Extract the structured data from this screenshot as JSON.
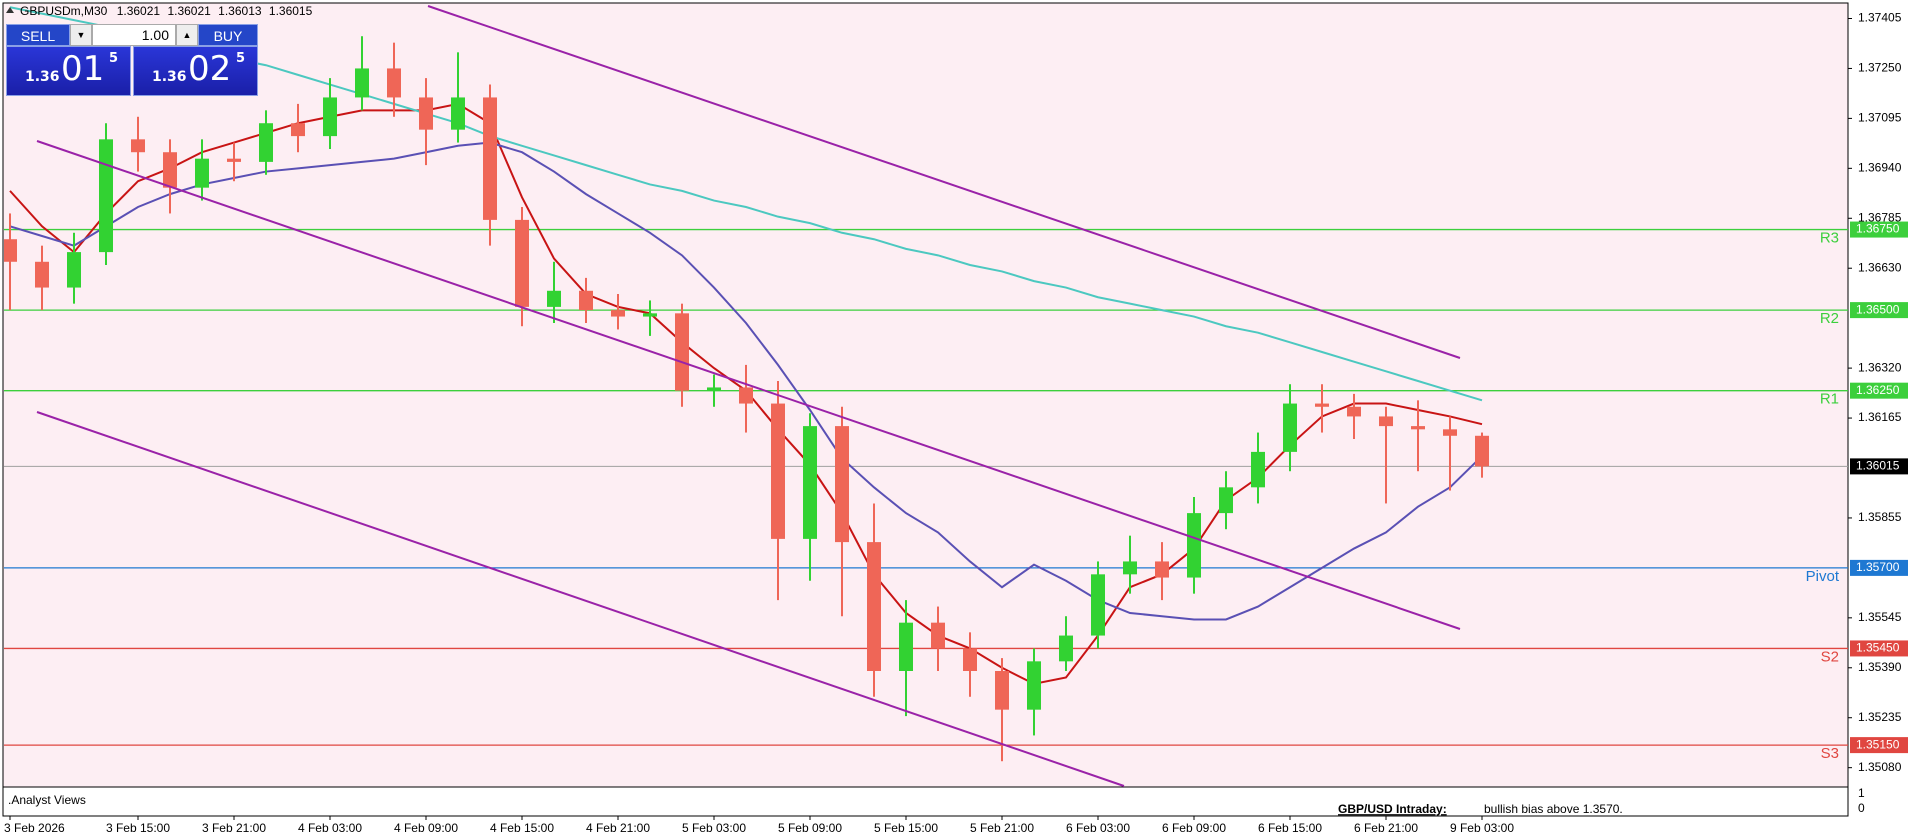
{
  "header": {
    "symbol": "GBPUSDm,M30",
    "ohlc": [
      1.36021,
      1.36021,
      1.36013,
      1.36015
    ]
  },
  "trade_panel": {
    "sell": "SELL",
    "buy": "BUY",
    "lot": "1.00",
    "bid": {
      "big": "1.36",
      "pips": "01",
      "point": "5"
    },
    "ask": {
      "big": "1.36",
      "pips": "02",
      "point": "5"
    }
  },
  "chart_data": {
    "type": "candlestick",
    "categories": [
      "3 Feb 2026",
      null,
      null,
      null,
      "3 Feb 15:00",
      null,
      null,
      "3 Feb 21:00",
      null,
      null,
      "4 Feb 03:00",
      null,
      null,
      "4 Feb 09:00",
      null,
      null,
      "4 Feb 15:00",
      null,
      null,
      "4 Feb 21:00",
      null,
      null,
      "5 Feb 03:00",
      null,
      null,
      "5 Feb 09:00",
      null,
      null,
      "5 Feb 15:00",
      null,
      null,
      "5 Feb 21:00",
      null,
      null,
      "6 Feb 03:00",
      null,
      null,
      "6 Feb 09:00",
      null,
      null,
      "6 Feb 15:00",
      null,
      null,
      "6 Feb 21:00",
      null,
      null,
      "9 Feb 03:00"
    ],
    "open": [
      1.3672,
      1.3665,
      1.3657,
      1.3668,
      1.3703,
      1.3699,
      1.3688,
      1.3697,
      1.3696,
      1.3708,
      1.3704,
      1.3716,
      1.3725,
      1.3716,
      1.3706,
      1.3716,
      1.3678,
      1.3651,
      1.3656,
      1.365,
      1.3648,
      1.3649,
      1.3625,
      1.3626,
      1.3621,
      1.3579,
      1.3614,
      1.3578,
      1.3538,
      1.3553,
      1.3545,
      1.3538,
      1.3526,
      1.3541,
      1.3549,
      1.3568,
      1.3572,
      1.3567,
      1.3587,
      1.3595,
      1.3606,
      1.3621,
      1.362,
      1.3617,
      1.3614,
      1.3613,
      1.3611
    ],
    "high": [
      1.368,
      1.367,
      1.3674,
      1.3708,
      1.371,
      1.3703,
      1.3703,
      1.3702,
      1.3712,
      1.3714,
      1.3722,
      1.3735,
      1.3733,
      1.3722,
      1.373,
      1.372,
      1.3682,
      1.3665,
      1.366,
      1.3655,
      1.3653,
      1.3652,
      1.363,
      1.3633,
      1.3628,
      1.3618,
      1.362,
      1.359,
      1.356,
      1.3558,
      1.355,
      1.3542,
      1.3545,
      1.3555,
      1.3572,
      1.358,
      1.3578,
      1.3592,
      1.36,
      1.3612,
      1.3627,
      1.3627,
      1.3624,
      1.362,
      1.3622,
      1.3617,
      1.3612
    ],
    "low": [
      1.365,
      1.365,
      1.3652,
      1.3664,
      1.3693,
      1.368,
      1.3684,
      1.369,
      1.3692,
      1.3699,
      1.37,
      1.3712,
      1.371,
      1.3695,
      1.3702,
      1.367,
      1.3645,
      1.3646,
      1.3646,
      1.3644,
      1.3642,
      1.362,
      1.362,
      1.3612,
      1.356,
      1.3566,
      1.3555,
      1.353,
      1.3524,
      1.3538,
      1.353,
      1.351,
      1.3518,
      1.3538,
      1.3545,
      1.3562,
      1.356,
      1.3562,
      1.3582,
      1.359,
      1.36,
      1.3612,
      1.361,
      1.359,
      1.36,
      1.3594,
      1.3598
    ],
    "close": [
      1.3665,
      1.3657,
      1.3668,
      1.3703,
      1.3699,
      1.3688,
      1.3697,
      1.3696,
      1.3708,
      1.3704,
      1.3716,
      1.3725,
      1.3716,
      1.3706,
      1.3716,
      1.3678,
      1.3651,
      1.3656,
      1.365,
      1.3648,
      1.3649,
      1.3625,
      1.3626,
      1.3621,
      1.3579,
      1.3614,
      1.3578,
      1.3538,
      1.3553,
      1.3545,
      1.3538,
      1.3526,
      1.3541,
      1.3549,
      1.3568,
      1.3572,
      1.3567,
      1.3587,
      1.3595,
      1.3606,
      1.3621,
      1.362,
      1.3617,
      1.3614,
      1.3613,
      1.3611,
      1.36015
    ],
    "bull_color": "#32d232",
    "bear_color": "#ef6657",
    "series": [
      {
        "color": "#c81414",
        "values": [
          1.3687,
          1.3676,
          1.3668,
          1.368,
          1.369,
          1.3694,
          1.3699,
          1.3702,
          1.3705,
          1.3708,
          1.371,
          1.3712,
          1.3712,
          1.3712,
          1.3714,
          1.3708,
          1.3685,
          1.3666,
          1.3655,
          1.3651,
          1.3649,
          1.364,
          1.3632,
          1.3625,
          1.3613,
          1.3602,
          1.3587,
          1.3568,
          1.3556,
          1.3549,
          1.3545,
          1.3539,
          1.3534,
          1.3536,
          1.3549,
          1.3564,
          1.3568,
          1.3576,
          1.3591,
          1.3598,
          1.3608,
          1.3617,
          1.3621,
          1.3621,
          1.3619,
          1.3617,
          1.36146
        ]
      },
      {
        "color": "#5a50b4",
        "values": [
          1.3676,
          1.3673,
          1.367,
          1.3676,
          1.3682,
          1.3686,
          1.3689,
          1.3691,
          1.3693,
          1.3694,
          1.3695,
          1.3696,
          1.3697,
          1.3699,
          1.3701,
          1.3702,
          1.3699,
          1.3693,
          1.3686,
          1.368,
          1.3674,
          1.3667,
          1.3657,
          1.3646,
          1.3633,
          1.3619,
          1.3604,
          1.3595,
          1.3587,
          1.3581,
          1.3572,
          1.3564,
          1.3571,
          1.3566,
          1.356,
          1.3556,
          1.3555,
          1.3554,
          1.3554,
          1.3558,
          1.3564,
          1.357,
          1.3576,
          1.3581,
          1.3589,
          1.3595,
          1.36047
        ]
      },
      {
        "color": "#4cc8c0",
        "values": [
          1.3744,
          1.3742,
          1.374,
          1.3738,
          1.3736,
          1.3734,
          1.3731,
          1.3728,
          1.3726,
          1.3723,
          1.372,
          1.3717,
          1.3714,
          1.3711,
          1.3708,
          1.3704,
          1.3701,
          1.3698,
          1.3695,
          1.3692,
          1.3689,
          1.3687,
          1.3684,
          1.3682,
          1.3679,
          1.3677,
          1.3674,
          1.3672,
          1.3669,
          1.3667,
          1.3664,
          1.3662,
          1.3659,
          1.3657,
          1.3654,
          1.3652,
          1.365,
          1.3648,
          1.3645,
          1.3643,
          1.364,
          1.3637,
          1.3634,
          1.3631,
          1.3628,
          1.3625,
          1.3622
        ]
      }
    ],
    "levels": [
      {
        "name": "R3",
        "value": 1.3675,
        "label": "1.36750",
        "color": "#3ccf3c"
      },
      {
        "name": "R2",
        "value": 1.365,
        "label": "1.36500",
        "color": "#3ccf3c"
      },
      {
        "name": "R1",
        "value": 1.3625,
        "label": "1.36250",
        "color": "#3ccf3c"
      },
      {
        "name": "Pivot",
        "value": 1.357,
        "label": "1.35700",
        "color": "#1e78d2"
      },
      {
        "name": "S2",
        "value": 1.3545,
        "label": "1.35450",
        "color": "#e04640"
      },
      {
        "name": "S3",
        "value": 1.3515,
        "label": "1.35150",
        "color": "#e04640"
      }
    ],
    "current": 1.36015,
    "ylim": [
      1.3502,
      1.3745
    ],
    "yticks": [
      1.37405,
      {
        "value": 1.3725,
        "label": "1.37250"
      },
      1.37095,
      {
        "value": 1.3694,
        "label": "1.36940"
      },
      1.36785,
      {
        "value": 1.3663,
        "label": "1.36630"
      },
      {
        "value": 1.3632,
        "label": "1.36320"
      },
      1.36165,
      1.35855,
      1.35545,
      {
        "value": 1.3539,
        "label": "1.35390"
      },
      1.35235,
      {
        "value": 1.3508,
        "label": "1.35080"
      }
    ]
  },
  "indicator_panel": {
    "title": ".Analyst Views",
    "label": "GBP/USD Intraday:",
    "text": "bullish bias above 1.3570.",
    "yticks": [
      1,
      0
    ]
  }
}
